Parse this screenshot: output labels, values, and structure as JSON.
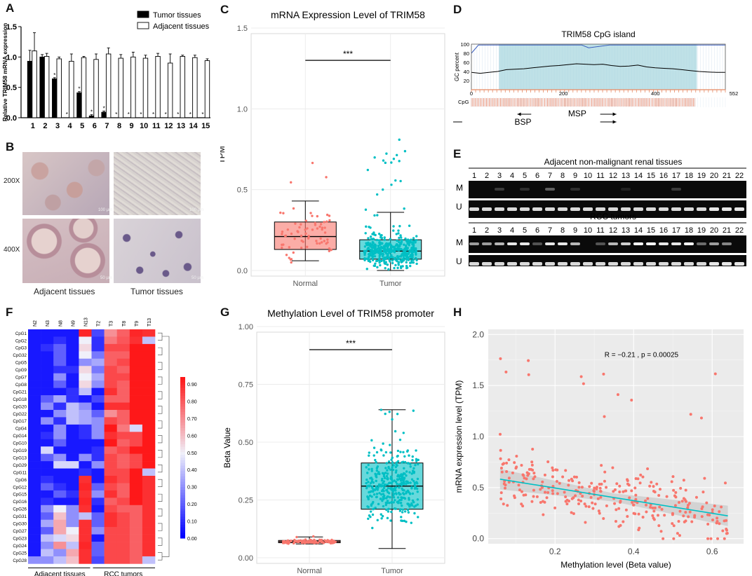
{
  "panel_labels": {
    "a": "A",
    "b": "B",
    "c": "C",
    "d": "D",
    "e": "E",
    "f": "F",
    "g": "G",
    "h": "H"
  },
  "chart_data": [
    {
      "id": "A",
      "type": "bar",
      "ylabel": "Relative TRIM58 mRNA expression",
      "ylim": [
        0,
        1.5
      ],
      "yticks": [
        "0.0",
        "0.5",
        "1.0",
        "1.5"
      ],
      "categories": [
        "1",
        "2",
        "3",
        "4",
        "5",
        "6",
        "7",
        "8",
        "9",
        "10",
        "11",
        "12",
        "13",
        "14",
        "15"
      ],
      "series": [
        {
          "name": "Tumor tissues",
          "color": "#000000",
          "values": [
            0.93,
            1.0,
            0.64,
            0.0,
            0.41,
            0.03,
            0.09,
            0.0,
            0.0,
            0.0,
            0.0,
            0.0,
            0.0,
            0.0,
            0.0
          ],
          "errors": [
            0.18,
            0.04,
            0.02,
            0,
            0.02,
            0.02,
            0.02,
            0,
            0,
            0,
            0,
            0,
            0,
            0,
            0
          ]
        },
        {
          "name": "Adjacent tissues",
          "color": "#ffffff",
          "values": [
            1.1,
            1.01,
            0.97,
            0.93,
            0.99,
            0.96,
            1.05,
            0.98,
            1.0,
            0.98,
            1.01,
            0.9,
            1.01,
            0.99,
            0.94
          ],
          "errors": [
            0.3,
            0.05,
            0.03,
            0.12,
            0.02,
            0.09,
            0.1,
            0.06,
            0.08,
            0.05,
            0.05,
            0.15,
            0.02,
            0.04,
            0.03
          ]
        }
      ],
      "asterisk": "*"
    },
    {
      "id": "C",
      "type": "box",
      "title": "mRNA Expression Level of TRIM58",
      "ylabel": "TPM",
      "ylim": [
        0,
        1.5
      ],
      "yticks": [
        "0.0",
        "0.5",
        "1.0",
        "1.5"
      ],
      "categories": [
        "Normal",
        "Tumor"
      ],
      "colors": [
        "#F8766D",
        "#00BFC4"
      ],
      "boxes": [
        {
          "min": 0.06,
          "q1": 0.13,
          "median": 0.21,
          "q3": 0.3,
          "max": 0.43
        },
        {
          "min": 0.0,
          "q1": 0.07,
          "median": 0.12,
          "q3": 0.19,
          "max": 0.36
        }
      ],
      "outlier_max": [
        0.7,
        0.84
      ],
      "significance": "***",
      "sig_y": 1.3
    },
    {
      "id": "D",
      "type": "line",
      "title": "TRIM58 CpG island",
      "ylabel": "GC percent",
      "xlim": [
        0,
        552
      ],
      "xticks": [
        "0",
        "200",
        "400",
        "552"
      ],
      "ylim": [
        0,
        100
      ],
      "yticks": [
        "0",
        "20",
        "40",
        "60",
        "80",
        "100"
      ],
      "island_range": [
        60,
        490
      ],
      "gc_curve": [
        38,
        36,
        38,
        40,
        44,
        45,
        46,
        48,
        50,
        52,
        53,
        55,
        57,
        56,
        55,
        56,
        53,
        51,
        52,
        54,
        50,
        48,
        47,
        46,
        44,
        42,
        40,
        39,
        38,
        38
      ],
      "cpg_label": "CpG",
      "primer_labels": {
        "bsp": "BSP",
        "msp": "MSP"
      }
    },
    {
      "id": "F",
      "type": "heatmap",
      "columns": [
        "N2",
        "N3",
        "N8",
        "N9",
        "N13",
        "T2",
        "T3",
        "T8",
        "T9",
        "T13"
      ],
      "rows": [
        "CpG1",
        "CpG2",
        "CpG3",
        "CpG32",
        "CpG5",
        "CpG9",
        "CpG7",
        "CpG8",
        "CpG21",
        "CpG18",
        "CpG20",
        "CpG22",
        "CpG17",
        "CpG4",
        "CpG14",
        "CpG10",
        "CpG19",
        "CpG13",
        "CpG29",
        "CpG11",
        "CpG6",
        "CpG12",
        "CpG15",
        "CpG16",
        "CpG26",
        "CpG31",
        "CpG30",
        "CpG27",
        "CpG23",
        "CpG24",
        "CpG25",
        "CpG28"
      ],
      "values": [
        [
          0.05,
          0.05,
          0.05,
          0.05,
          0.92,
          0.15,
          0.7,
          0.8,
          0.92,
          0.9
        ],
        [
          0.05,
          0.05,
          0.1,
          0.05,
          0.5,
          0.1,
          0.75,
          0.82,
          0.9,
          0.4
        ],
        [
          0.05,
          0.1,
          0.2,
          0.05,
          0.55,
          0.1,
          0.85,
          0.85,
          0.95,
          0.95
        ],
        [
          0.05,
          0.05,
          0.2,
          0.05,
          0.5,
          0.25,
          0.8,
          0.8,
          0.95,
          0.95
        ],
        [
          0.05,
          0.05,
          0.2,
          0.05,
          0.3,
          0.35,
          0.8,
          0.85,
          0.95,
          0.95
        ],
        [
          0.05,
          0.05,
          0.1,
          0.1,
          0.55,
          0.25,
          0.85,
          0.8,
          0.95,
          0.95
        ],
        [
          0.05,
          0.05,
          0.3,
          0.05,
          0.5,
          0.35,
          0.85,
          0.85,
          0.95,
          0.95
        ],
        [
          0.05,
          0.05,
          0.2,
          0.05,
          0.55,
          0.3,
          0.85,
          0.8,
          0.95,
          0.95
        ],
        [
          0.05,
          0.05,
          0.05,
          0.1,
          0.4,
          0.05,
          0.9,
          0.8,
          0.95,
          0.95
        ],
        [
          0.05,
          0.2,
          0.35,
          0.1,
          0.05,
          0.15,
          0.8,
          0.8,
          0.95,
          0.95
        ],
        [
          0.05,
          0.3,
          0.1,
          0.4,
          0.3,
          0.05,
          0.9,
          0.9,
          0.95,
          0.95
        ],
        [
          0.05,
          0.05,
          0.3,
          0.4,
          0.35,
          0.2,
          0.7,
          0.8,
          0.95,
          0.95
        ],
        [
          0.05,
          0.3,
          0.1,
          0.4,
          0.35,
          0.3,
          0.85,
          0.8,
          0.95,
          0.95
        ],
        [
          0.05,
          0.05,
          0.3,
          0.05,
          0.1,
          0.3,
          0.95,
          0.75,
          0.45,
          0.95
        ],
        [
          0.05,
          0.1,
          0.3,
          0.05,
          0.1,
          0.3,
          0.9,
          0.85,
          0.85,
          0.95
        ],
        [
          0.05,
          0.05,
          0.2,
          0.05,
          0.05,
          0.05,
          0.95,
          0.8,
          0.85,
          0.95
        ],
        [
          0.05,
          0.45,
          0.05,
          0.05,
          0.05,
          0.1,
          0.8,
          0.85,
          0.95,
          0.95
        ],
        [
          0.05,
          0.2,
          0.3,
          0.05,
          0.3,
          0.1,
          0.85,
          0.8,
          0.85,
          0.95
        ],
        [
          0.05,
          0.05,
          0.45,
          0.45,
          0.05,
          0.3,
          0.85,
          0.8,
          0.85,
          0.95
        ],
        [
          0.05,
          0.05,
          0.05,
          0.05,
          0.1,
          0.05,
          0.85,
          0.85,
          0.95,
          0.4
        ],
        [
          0.05,
          0.1,
          0.05,
          0.05,
          0.9,
          0.05,
          0.9,
          0.85,
          0.95,
          0.9
        ],
        [
          0.05,
          0.2,
          0.1,
          0.05,
          0.92,
          0.2,
          0.85,
          0.8,
          0.95,
          0.9
        ],
        [
          0.05,
          0.05,
          0.2,
          0.1,
          0.9,
          0.3,
          0.9,
          0.8,
          0.95,
          0.9
        ],
        [
          0.05,
          0.1,
          0.05,
          0.05,
          0.92,
          0.1,
          0.8,
          0.85,
          0.95,
          0.9
        ],
        [
          0.05,
          0.3,
          0.5,
          0.3,
          0.9,
          0.05,
          0.85,
          0.8,
          0.8,
          0.9
        ],
        [
          0.05,
          0.2,
          0.6,
          0.3,
          0.4,
          0.2,
          0.9,
          0.85,
          0.8,
          0.9
        ],
        [
          0.05,
          0.35,
          0.65,
          0.3,
          0.9,
          0.2,
          0.9,
          0.85,
          0.8,
          0.9
        ],
        [
          0.05,
          0.2,
          0.65,
          0.5,
          0.9,
          0.3,
          0.85,
          0.85,
          0.8,
          0.9
        ],
        [
          0.05,
          0.4,
          0.45,
          0.55,
          0.9,
          0.05,
          0.85,
          0.85,
          0.8,
          0.9
        ],
        [
          0.05,
          0.3,
          0.7,
          0.4,
          0.92,
          0.2,
          0.85,
          0.85,
          0.8,
          0.9
        ],
        [
          0.05,
          0.4,
          0.3,
          0.65,
          0.9,
          0.2,
          0.85,
          0.85,
          0.8,
          0.9
        ],
        [
          0.3,
          0.3,
          0.4,
          0.6,
          0.9,
          0.15,
          0.85,
          0.85,
          0.8,
          0.4
        ]
      ],
      "scale_ticks": [
        "0.90",
        "0.80",
        "0.70",
        "0.60",
        "0.50",
        "0.40",
        "0.30",
        "0.20",
        "0.10",
        "0.00"
      ],
      "group_labels": [
        "Adjacent tissues",
        "RCC tumors"
      ]
    },
    {
      "id": "G",
      "type": "box",
      "title": "Methylation Level of TRIM58 promoter",
      "ylabel": "Beta Value",
      "ylim": [
        0,
        1.0
      ],
      "yticks": [
        "0.00",
        "0.25",
        "0.50",
        "0.75",
        "1.00"
      ],
      "categories": [
        "Normal",
        "Tumor"
      ],
      "colors": [
        "#F8766D",
        "#00BFC4"
      ],
      "boxes": [
        {
          "min": 0.06,
          "q1": 0.065,
          "median": 0.07,
          "q3": 0.075,
          "max": 0.09
        },
        {
          "min": 0.04,
          "q1": 0.21,
          "median": 0.31,
          "q3": 0.41,
          "max": 0.64
        }
      ],
      "significance": "***",
      "sig_y": 0.9
    },
    {
      "id": "H",
      "type": "scatter",
      "xlabel": "Methylation level (Beta value)",
      "ylabel": "mRNA expression level (TPM)",
      "xlim": [
        0.03,
        0.68
      ],
      "ylim": [
        -0.05,
        2.05
      ],
      "xticks": [
        "0.2",
        "0.4",
        "0.6"
      ],
      "yticks": [
        "0.0",
        "0.5",
        "1.0",
        "1.5",
        "2.0"
      ],
      "annotation": "R = −0.21 , p = 0.00025",
      "fit": {
        "slope": -0.62,
        "intercept": 0.62
      },
      "point_color": "#F8766D",
      "line_color": "#00BFC4"
    }
  ],
  "panel_a_legend": [
    "Tumor tissues",
    "Adjacent tissues"
  ],
  "panel_b": {
    "row_labels": [
      "200X",
      "400X"
    ],
    "captions": [
      "Adjacent tissues",
      "Tumor tissues"
    ],
    "scale_100": "100 µm",
    "scale_50": "50 µm"
  },
  "panel_e": {
    "title_top": "Adjacent non-malignant renal tissues",
    "title_bottom": "RCC tumors",
    "lanes": [
      "1",
      "2",
      "3",
      "4",
      "5",
      "6",
      "7",
      "8",
      "9",
      "10",
      "11",
      "12",
      "13",
      "14",
      "15",
      "16",
      "17",
      "18",
      "19",
      "20",
      "21",
      "22"
    ],
    "row_m": "M",
    "row_u": "U",
    "adjacent_m": [
      0,
      0,
      0.2,
      0,
      0.15,
      0,
      0.35,
      0,
      0.15,
      0,
      0,
      0,
      0.1,
      0,
      0,
      0,
      0.2,
      0,
      0,
      0,
      0,
      0
    ],
    "tumor_m": [
      0.6,
      0.6,
      0.7,
      0.9,
      0.9,
      0.3,
      0.9,
      0.9,
      0.7,
      0,
      0.3,
      0.7,
      0.8,
      1,
      1,
      0.9,
      0.9,
      1,
      0.4,
      0.6,
      0.5,
      0
    ],
    "u_bands": [
      0.85,
      0.85,
      0.85,
      0.85,
      0.85,
      0.85,
      0.85,
      0.85,
      0.85,
      0.85,
      0.85,
      0.85,
      0.85,
      0.85,
      0.85,
      0.85,
      0.85,
      0.85,
      0.85,
      0.9,
      0.9,
      0.9
    ]
  }
}
